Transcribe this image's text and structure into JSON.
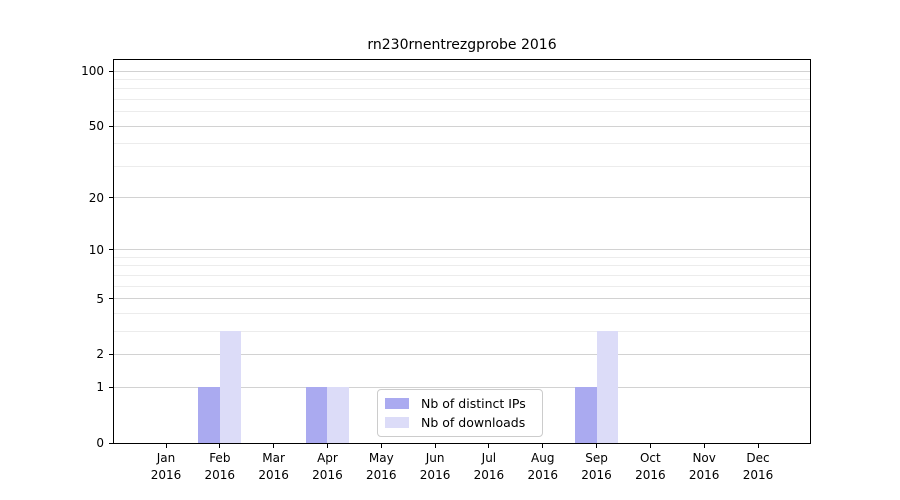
{
  "chart_data": {
    "type": "bar",
    "title": "rn230rnentrezgprobe 2016",
    "year_label": "2016",
    "categories": [
      "Jan",
      "Feb",
      "Mar",
      "Apr",
      "May",
      "Jun",
      "Jul",
      "Aug",
      "Sep",
      "Oct",
      "Nov",
      "Dec"
    ],
    "series": [
      {
        "name": "Nb of distinct IPs",
        "color": "#aaaaf0",
        "values": [
          0,
          1,
          0,
          1,
          0,
          0,
          0,
          0,
          1,
          0,
          0,
          0
        ]
      },
      {
        "name": "Nb of downloads",
        "color": "#dcdcf8",
        "values": [
          0,
          3,
          0,
          1,
          0,
          0,
          0,
          0,
          3,
          0,
          0,
          0
        ]
      }
    ],
    "yscale": "log1p",
    "ylim": [
      0,
      115
    ],
    "yticks": [
      0,
      1,
      2,
      5,
      10,
      20,
      50,
      100
    ],
    "yticks_minor": [
      3,
      4,
      6,
      7,
      8,
      9,
      30,
      40,
      60,
      70,
      80,
      90
    ],
    "grid": "horizontal",
    "legend_position": "inside-bottom-center"
  },
  "colors": {
    "background": "#ffffff",
    "axis": "#000000",
    "grid_major": "#d2d2d2",
    "grid_minor": "#ececec",
    "legend_border": "#cccccc",
    "text": "#000000"
  }
}
